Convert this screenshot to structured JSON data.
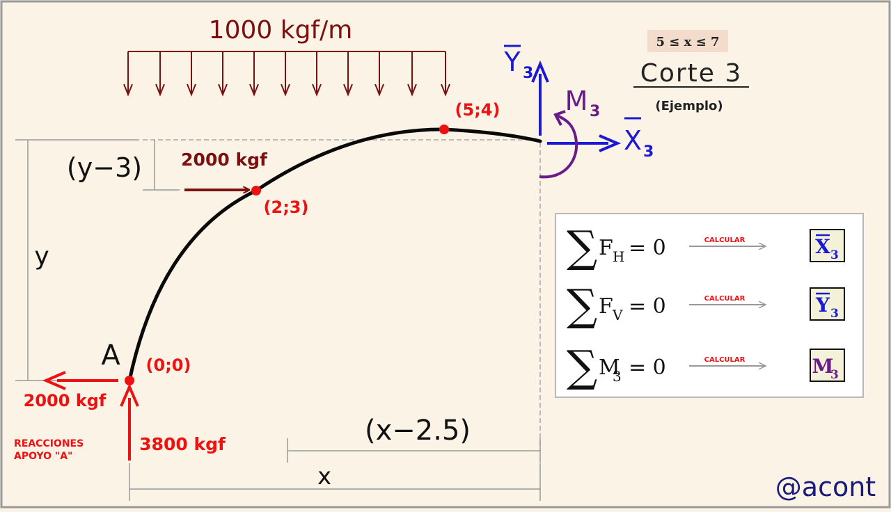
{
  "load": {
    "value": "1000 kgf/m"
  },
  "range_label": "5 ≤ x ≤ 7",
  "title": "Corte 3",
  "subtitle": "(Ejemplo)",
  "points": {
    "p00": "(0;0)",
    "p23": "(2;3)",
    "p54": "(5;4)",
    "A": "A"
  },
  "forces": {
    "horizontal_point": "2000 kgf",
    "reaction_h": "2000 kgf",
    "reaction_v": "3800 kgf"
  },
  "reactions_label": {
    "line1": "REACCIONES",
    "line2": "APOYO \"A\""
  },
  "dimensions": {
    "y_minus_3": "(y−3)",
    "y": "y",
    "x_minus_2_5": "(x−2.5)",
    "x": "x"
  },
  "section_forces": {
    "Y_letter": "Y",
    "Y_sub": "3",
    "X_letter": "X",
    "X_sub": "3",
    "M_letter": "M",
    "M_sub": "3"
  },
  "equations": [
    {
      "sum": "∑",
      "var": "F",
      "sub": "H",
      "rhs": "= 0",
      "action": "CALCULAR",
      "result_letter": "X",
      "result_sub": "3",
      "result_overline": true,
      "result_color": "#1a1ad6"
    },
    {
      "sum": "∑",
      "var": "F",
      "sub": "V",
      "rhs": "= 0",
      "action": "CALCULAR",
      "result_letter": "Y",
      "result_sub": "3",
      "result_overline": true,
      "result_color": "#1a1ad6"
    },
    {
      "sum": "∑",
      "var": "M",
      "sub": "3",
      "rhs": "= 0",
      "action": "CALCULAR",
      "result_letter": "M",
      "result_sub": "3",
      "result_overline": false,
      "result_color": "#6a1b8a"
    }
  ],
  "watermark": "@acont",
  "colors": {
    "background": "#fbf3e6",
    "red": "#ee1111",
    "dark_red": "#7a1010",
    "blue": "#1a1ad6",
    "purple": "#6a1b8a",
    "navy": "#1a1a7a"
  }
}
